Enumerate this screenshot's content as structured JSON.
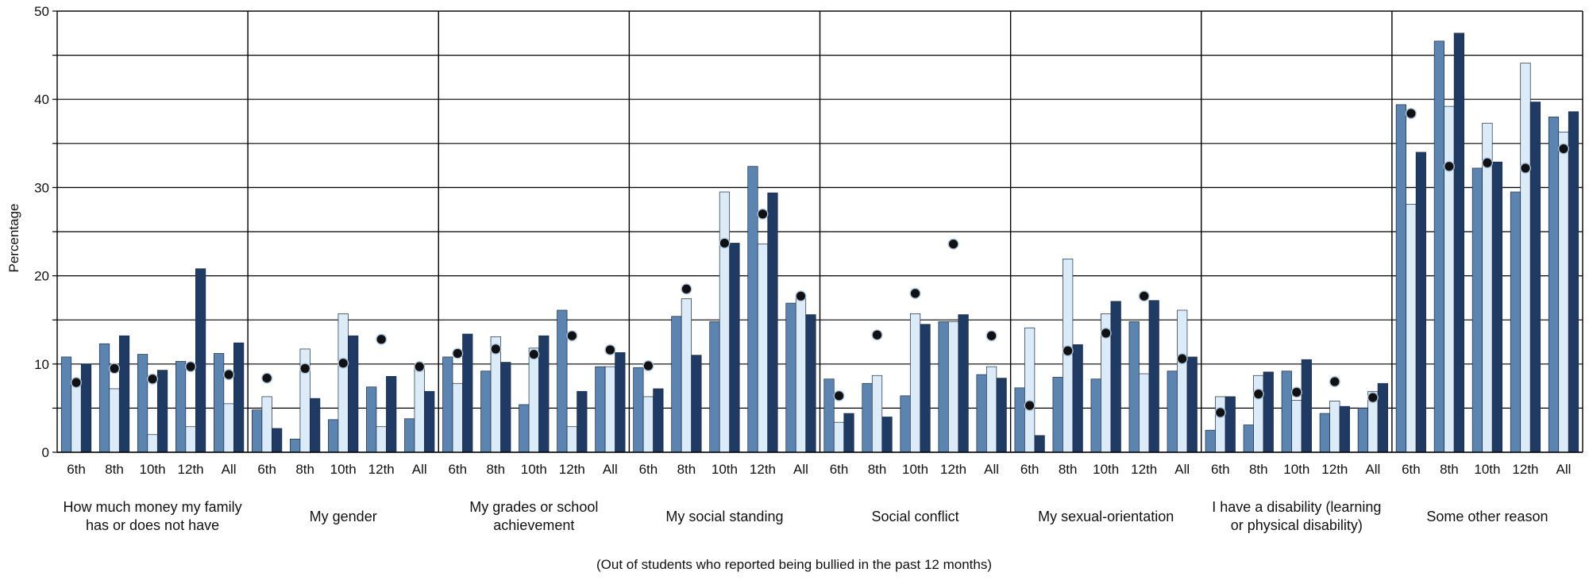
{
  "chart_data": {
    "type": "bar",
    "ylabel": "Percentage",
    "xlabel": "(Out of students who reported being bullied in the past 12 months)",
    "ylim": [
      0,
      50
    ],
    "yticks": [
      0,
      10,
      20,
      30,
      40,
      50
    ],
    "grid": true,
    "legend": "none",
    "subcategories": [
      "6th",
      "8th",
      "10th",
      "12th",
      "All"
    ],
    "groups": [
      {
        "label_lines": [
          "How much money my family",
          "has or does not have"
        ],
        "values": [
          [
            10.8,
            8.0,
            10.0,
            7.9
          ],
          [
            12.3,
            7.2,
            13.2,
            9.5
          ],
          [
            11.1,
            2.0,
            9.3,
            8.3
          ],
          [
            10.3,
            2.9,
            20.8,
            9.7
          ],
          [
            11.2,
            5.5,
            12.4,
            8.8
          ]
        ]
      },
      {
        "label_lines": [
          "My gender"
        ],
        "values": [
          [
            4.8,
            6.3,
            2.7,
            8.4
          ],
          [
            1.5,
            11.7,
            6.1,
            9.5
          ],
          [
            3.7,
            15.7,
            13.2,
            10.1
          ],
          [
            7.4,
            2.9,
            8.6,
            12.8
          ],
          [
            3.8,
            9.5,
            6.9,
            9.7
          ]
        ]
      },
      {
        "label_lines": [
          "My grades or school",
          "achievement"
        ],
        "values": [
          [
            10.8,
            7.8,
            13.4,
            11.2
          ],
          [
            9.2,
            13.1,
            10.2,
            11.7
          ],
          [
            5.4,
            11.8,
            13.2,
            11.1
          ],
          [
            16.1,
            2.9,
            6.9,
            13.2
          ],
          [
            9.7,
            9.7,
            11.3,
            11.6
          ]
        ]
      },
      {
        "label_lines": [
          "My social standing"
        ],
        "values": [
          [
            9.6,
            6.3,
            7.2,
            9.8
          ],
          [
            15.4,
            17.4,
            11.0,
            18.5
          ],
          [
            14.8,
            29.5,
            23.7,
            23.7
          ],
          [
            32.4,
            23.6,
            29.4,
            27.0
          ],
          [
            16.9,
            17.7,
            15.6,
            17.7
          ]
        ]
      },
      {
        "label_lines": [
          "Social conflict"
        ],
        "values": [
          [
            8.3,
            3.4,
            4.4,
            6.4
          ],
          [
            7.8,
            8.7,
            4.0,
            13.3
          ],
          [
            6.4,
            15.7,
            14.5,
            18.0
          ],
          [
            14.8,
            14.8,
            15.6,
            23.6
          ],
          [
            8.8,
            9.7,
            8.4,
            13.2
          ]
        ]
      },
      {
        "label_lines": [
          "My sexual-orientation"
        ],
        "values": [
          [
            7.3,
            14.1,
            1.9,
            5.3
          ],
          [
            8.5,
            21.9,
            12.2,
            11.5
          ],
          [
            8.3,
            15.7,
            17.1,
            13.5
          ],
          [
            14.8,
            8.9,
            17.2,
            17.7
          ],
          [
            9.2,
            16.1,
            10.8,
            10.6
          ]
        ]
      },
      {
        "label_lines": [
          "I have a disability (learning",
          "or physical disability)"
        ],
        "values": [
          [
            2.5,
            6.3,
            6.3,
            4.5
          ],
          [
            3.1,
            8.7,
            9.1,
            6.6
          ],
          [
            9.2,
            5.9,
            10.5,
            6.8
          ],
          [
            4.4,
            5.8,
            5.2,
            8.0
          ],
          [
            5.0,
            6.9,
            7.8,
            6.2
          ]
        ]
      },
      {
        "label_lines": [
          "Some other reason"
        ],
        "values": [
          [
            39.4,
            28.1,
            34.0,
            38.4
          ],
          [
            46.6,
            39.2,
            47.5,
            32.4
          ],
          [
            32.2,
            37.3,
            32.9,
            32.8
          ],
          [
            29.5,
            44.1,
            39.7,
            32.2
          ],
          [
            38.0,
            36.3,
            38.6,
            34.4
          ]
        ]
      }
    ]
  },
  "colors": {
    "bar_medium": "#5b84b1",
    "bar_light": "#dcebf8",
    "bar_dark": "#1f3b63",
    "dot": "#111111",
    "grid": "#000000"
  }
}
